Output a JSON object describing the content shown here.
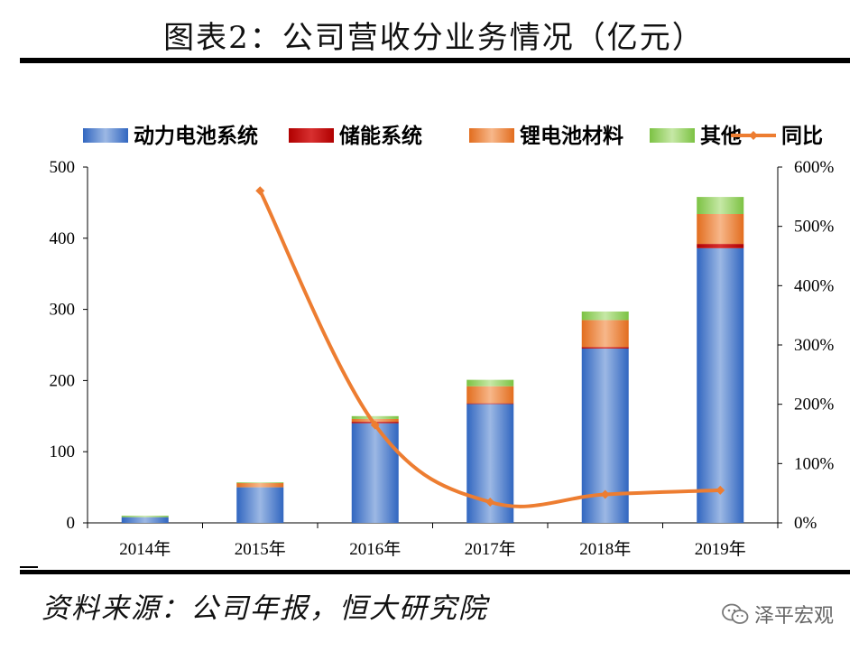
{
  "header": {
    "title": "图表2：公司营收分业务情况（亿元）"
  },
  "footer": {
    "source": "资料来源：公司年报，恒大研究院",
    "watermark": "泽平宏观"
  },
  "chart_data": {
    "type": "bar",
    "stacked": true,
    "title": "图表2：公司营收分业务情况（亿元）",
    "categories": [
      "2014年",
      "2015年",
      "2016年",
      "2017年",
      "2018年",
      "2019年"
    ],
    "series": [
      {
        "name": "动力电池系统",
        "type": "bar",
        "axis": "left",
        "color": "#3b6fc4",
        "values": [
          8,
          50,
          140,
          167,
          245,
          386
        ]
      },
      {
        "name": "储能系统",
        "type": "bar",
        "axis": "left",
        "color": "#c00000",
        "values": [
          0,
          0,
          2,
          1,
          2,
          6
        ]
      },
      {
        "name": "锂电池材料",
        "type": "bar",
        "axis": "left",
        "color": "#ed7d31",
        "values": [
          0,
          6,
          4,
          24,
          38,
          42
        ]
      },
      {
        "name": "其他",
        "type": "bar",
        "axis": "left",
        "color": "#92d050",
        "values": [
          2,
          1,
          4,
          9,
          12,
          24
        ]
      },
      {
        "name": "同比",
        "type": "line",
        "axis": "right",
        "color": "#ed7d31",
        "values": [
          null,
          560,
          165,
          35,
          48,
          55
        ]
      }
    ],
    "yleft": {
      "min": 0,
      "max": 500,
      "ticks": [
        0,
        100,
        200,
        300,
        400,
        500
      ],
      "tick_labels": [
        "0",
        "100",
        "200",
        "300",
        "400",
        "500"
      ]
    },
    "yright": {
      "min": 0,
      "max": 600,
      "ticks": [
        0,
        100,
        200,
        300,
        400,
        500,
        600
      ],
      "tick_labels": [
        "0%",
        "100%",
        "200%",
        "300%",
        "400%",
        "500%",
        "600%"
      ]
    },
    "legend": {
      "position": "top"
    },
    "grid": false
  }
}
